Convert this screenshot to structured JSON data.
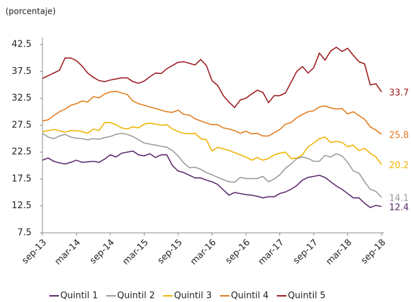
{
  "chart_data": {
    "type": "line",
    "subtitle": "(porcentaje)",
    "categories": [
      "sep-13",
      null,
      null,
      null,
      null,
      null,
      "mar-14",
      null,
      null,
      null,
      null,
      null,
      "sep-14",
      null,
      null,
      null,
      null,
      null,
      "mar-15",
      null,
      null,
      null,
      null,
      null,
      "sep-15",
      null,
      null,
      null,
      null,
      null,
      "mar-16",
      null,
      null,
      null,
      null,
      null,
      "sep-16",
      null,
      null,
      null,
      null,
      null,
      "mar-17",
      null,
      null,
      null,
      null,
      null,
      "sep-17",
      null,
      null,
      null,
      null,
      null,
      "mar-18",
      null,
      null,
      null,
      null,
      null,
      "sep-18"
    ],
    "ylim": [
      7.5,
      42.5
    ],
    "yticks": [
      7.5,
      12.5,
      17.5,
      22.5,
      27.5,
      32.5,
      37.5,
      42.5
    ],
    "series": [
      {
        "name": "Quintil 1",
        "color": "#5b2a6b",
        "values": [
          21.0,
          21.4,
          20.8,
          20.5,
          20.3,
          20.6,
          21.0,
          20.6,
          20.7,
          20.8,
          20.6,
          21.2,
          22.0,
          21.6,
          22.3,
          22.5,
          22.7,
          22.0,
          21.8,
          22.2,
          21.5,
          22.0,
          22.0,
          20.0,
          19.0,
          18.7,
          18.2,
          17.7,
          17.7,
          17.3,
          17.0,
          16.5,
          15.5,
          14.5,
          15.0,
          14.8,
          14.6,
          14.5,
          14.3,
          14.0,
          14.2,
          14.2,
          14.8,
          15.1,
          15.6,
          16.3,
          17.3,
          17.8,
          18.0,
          18.2,
          17.8,
          17.0,
          16.2,
          15.6,
          14.8,
          14.0,
          14.0,
          13.0,
          12.2,
          12.6,
          12.4
        ]
      },
      {
        "name": "Quintil 2",
        "color": "#9a9a9a",
        "values": [
          26.0,
          25.3,
          25.0,
          25.5,
          25.8,
          25.3,
          25.1,
          25.0,
          24.8,
          25.0,
          24.9,
          25.2,
          25.4,
          25.8,
          26.0,
          25.8,
          25.4,
          24.8,
          24.2,
          24.0,
          23.8,
          23.6,
          23.4,
          22.8,
          21.8,
          20.5,
          19.6,
          19.7,
          19.3,
          18.7,
          18.3,
          17.8,
          17.4,
          17.0,
          16.9,
          17.8,
          17.6,
          17.6,
          17.6,
          18.0,
          17.0,
          17.5,
          18.3,
          19.5,
          20.3,
          21.3,
          21.6,
          21.3,
          20.8,
          20.8,
          21.9,
          21.6,
          22.2,
          21.8,
          20.6,
          19.0,
          18.6,
          17.0,
          15.6,
          15.2,
          14.1
        ]
      },
      {
        "name": "Quintil 3",
        "color": "#efb300",
        "values": [
          26.3,
          26.5,
          26.7,
          26.5,
          26.2,
          26.5,
          26.5,
          26.3,
          26.0,
          26.8,
          26.5,
          28.0,
          28.0,
          27.6,
          27.0,
          26.8,
          27.2,
          27.0,
          27.7,
          27.9,
          27.7,
          27.5,
          27.6,
          26.8,
          26.3,
          26.0,
          25.9,
          26.0,
          25.0,
          24.8,
          22.7,
          23.4,
          23.1,
          22.8,
          22.4,
          22.0,
          21.6,
          21.0,
          21.5,
          21.0,
          21.3,
          22.0,
          22.3,
          22.5,
          21.3,
          21.4,
          22.0,
          23.5,
          24.2,
          25.0,
          25.3,
          24.3,
          24.5,
          24.3,
          23.5,
          23.8,
          22.8,
          23.2,
          22.3,
          21.6,
          20.2
        ]
      },
      {
        "name": "Quintil 4",
        "color": "#e07b1c",
        "values": [
          28.3,
          28.5,
          29.3,
          30.0,
          30.5,
          31.2,
          31.5,
          32.0,
          31.8,
          32.8,
          32.6,
          33.3,
          33.7,
          33.8,
          33.5,
          33.2,
          32.0,
          31.5,
          31.2,
          30.9,
          30.6,
          30.3,
          30.0,
          29.9,
          30.3,
          29.5,
          29.4,
          28.7,
          28.3,
          27.9,
          27.6,
          27.6,
          27.0,
          26.8,
          26.5,
          26.0,
          26.4,
          25.9,
          26.0,
          25.5,
          25.5,
          26.1,
          26.7,
          27.7,
          28.0,
          28.9,
          29.5,
          30.0,
          30.2,
          30.9,
          31.1,
          30.7,
          30.5,
          30.6,
          29.6,
          30.0,
          29.3,
          28.6,
          27.2,
          26.6,
          25.8
        ]
      },
      {
        "name": "Quintil 5",
        "color": "#9b1b1f",
        "values": [
          36.2,
          36.7,
          37.2,
          37.7,
          40.0,
          40.0,
          39.5,
          38.5,
          37.2,
          36.4,
          35.8,
          35.6,
          35.9,
          36.1,
          36.3,
          36.3,
          35.6,
          35.3,
          35.7,
          36.5,
          37.2,
          37.1,
          38.0,
          38.6,
          39.2,
          39.3,
          39.0,
          38.7,
          39.7,
          38.6,
          35.8,
          34.9,
          33.0,
          31.8,
          30.8,
          32.2,
          32.5,
          33.3,
          34.0,
          33.6,
          31.7,
          33.0,
          33.0,
          33.5,
          35.5,
          37.5,
          38.4,
          37.2,
          38.2,
          40.9,
          39.6,
          41.3,
          42.0,
          41.2,
          41.8,
          40.5,
          39.3,
          38.9,
          35.0,
          35.2,
          33.7
        ]
      }
    ]
  }
}
